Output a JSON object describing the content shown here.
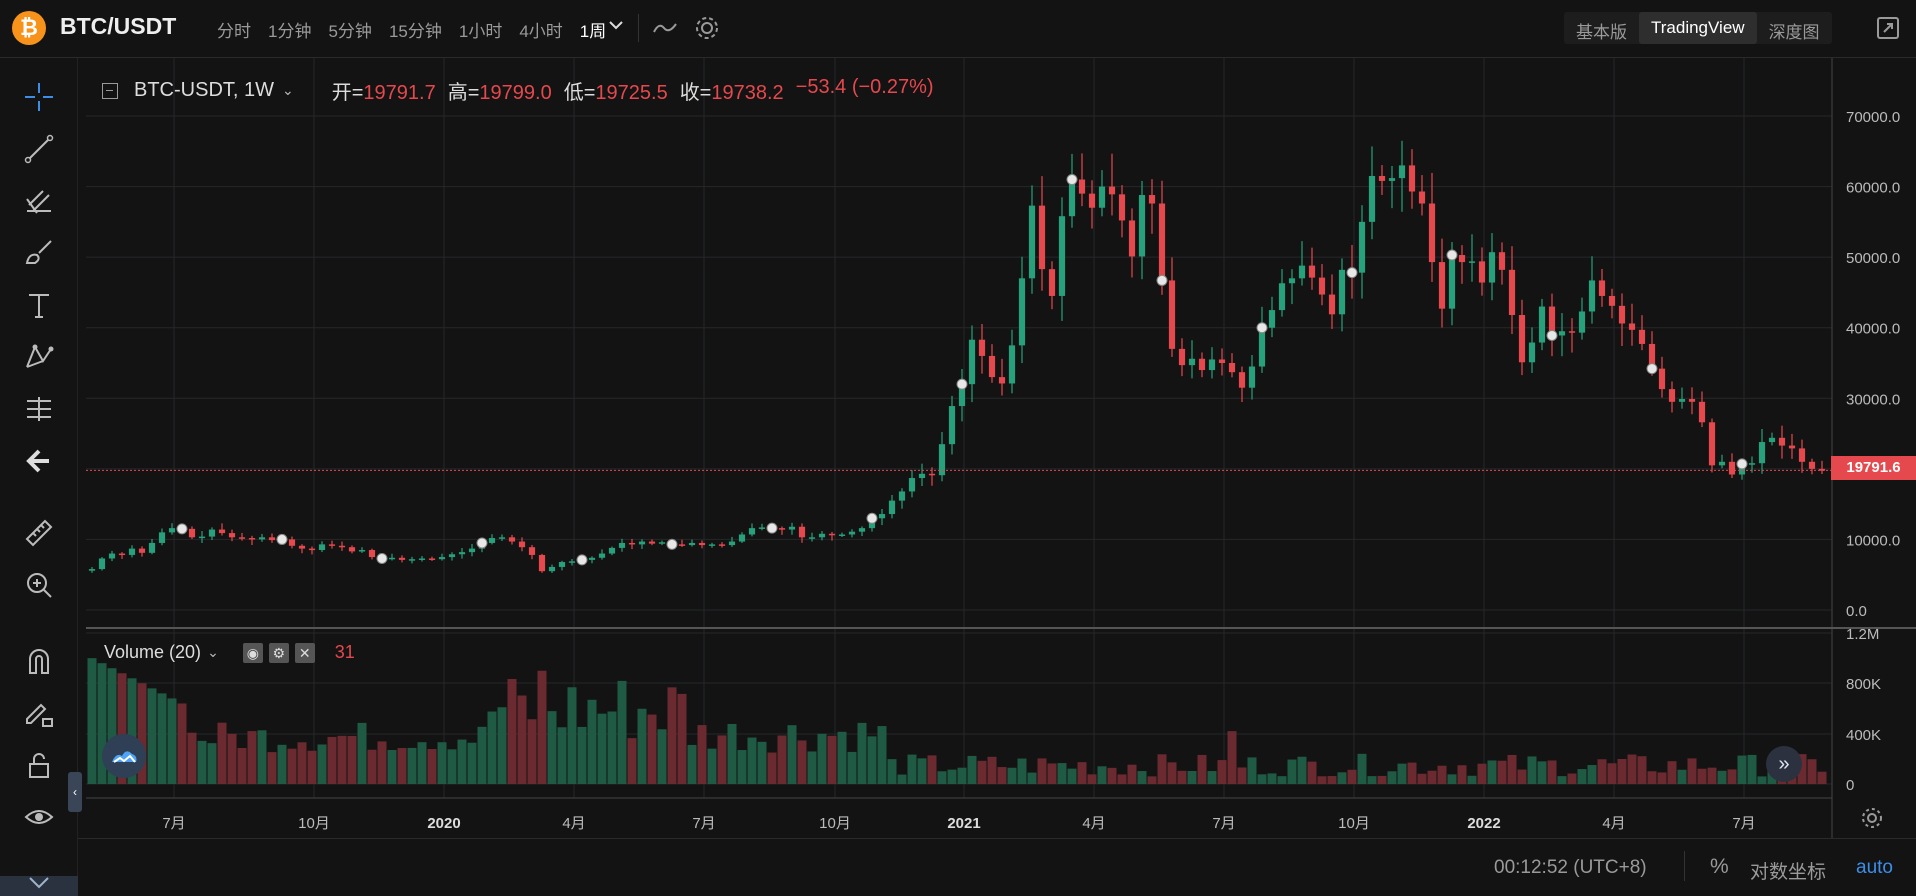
{
  "header": {
    "logo_glyph": "₿",
    "pair": "BTC/USDT",
    "intervals": [
      "分时",
      "1分钟",
      "5分钟",
      "15分钟",
      "1小时",
      "4小时",
      "1周"
    ],
    "active_interval": "1周",
    "views": [
      "基本版",
      "TradingView",
      "深度图"
    ],
    "active_view": "TradingView"
  },
  "legend": {
    "symbol": "BTC-USDT, 1W",
    "open_label": "开=",
    "open": "19791.7",
    "high_label": "高=",
    "high": "19799.0",
    "low_label": "低=",
    "low": "19725.5",
    "close_label": "收=",
    "close": "19738.2",
    "change": "−53.4 (−0.27%)"
  },
  "volume_legend": {
    "label": "Volume (20)",
    "value": "31"
  },
  "price_tag": "19791.6",
  "bottom": {
    "time": "00:12:52 (UTC+8)",
    "percent": "%",
    "log": "对数坐标",
    "auto": "auto"
  },
  "colors": {
    "up": "#26a17b",
    "down": "#e5484d",
    "background": "#131313",
    "grid": "#26272b",
    "accent": "#3c8ee8"
  },
  "icons": {
    "toolbar": [
      "crosshair-icon",
      "trend-line-icon",
      "pitchfork-icon",
      "brush-icon",
      "text-icon",
      "pattern-icon",
      "measure-range-icon",
      "back-arrow-icon",
      "ruler-icon",
      "zoom-in-icon",
      "magnet-icon",
      "lock-pencil-icon",
      "unlock-icon",
      "eye-icon"
    ]
  },
  "chart_data": [
    {
      "type": "candlestick",
      "title": "BTC-USDT, 1W",
      "xlabel": "",
      "ylabel": "",
      "ylim": [
        0,
        70000
      ],
      "x_ticks": [
        "7月",
        "10月",
        "2020",
        "4月",
        "7月",
        "10月",
        "2021",
        "4月",
        "7月",
        "10月",
        "2022",
        "4月",
        "7月"
      ],
      "y_ticks": [
        "70000.0",
        "60000.0",
        "50000.0",
        "40000.0",
        "30000.0",
        "20000.0",
        "10000.0",
        "0.0"
      ],
      "current_price": 19791.6,
      "closes": [
        5800,
        7300,
        8000,
        7800,
        8700,
        8100,
        9500,
        11000,
        11600,
        11500,
        10300,
        10400,
        11400,
        10900,
        10300,
        10200,
        10000,
        10300,
        9900,
        10000,
        9100,
        8700,
        8500,
        9300,
        9100,
        8900,
        8300,
        8500,
        7500,
        7300,
        7400,
        7100,
        7200,
        7300,
        7200,
        7500,
        7900,
        8200,
        8700,
        9500,
        10200,
        10300,
        9700,
        8900,
        7800,
        5500,
        6100,
        6800,
        6900,
        7100,
        7400,
        8000,
        8800,
        9500,
        9300,
        9700,
        9400,
        9600,
        9300,
        9200,
        9500,
        9200,
        9300,
        9200,
        9700,
        10700,
        11600,
        11700,
        11600,
        11400,
        11800,
        10300,
        10300,
        10800,
        10600,
        10700,
        11100,
        11600,
        13000,
        13600,
        15500,
        16800,
        18700,
        19300,
        19100,
        23500,
        28900,
        32000,
        38300,
        36000,
        33000,
        32100,
        37500,
        47000,
        57300,
        48300,
        44500,
        55800,
        61000,
        59000,
        57000,
        60000,
        58900,
        55200,
        50100,
        58800,
        57600,
        46700,
        37000,
        34700,
        35600,
        34000,
        35500,
        35000,
        33700,
        31500,
        34500,
        40000,
        42500,
        46300,
        47000,
        48800,
        47100,
        44700,
        41900,
        48200,
        47800,
        55000,
        61500,
        60800,
        61200,
        63000,
        59300,
        57600,
        49300,
        42700,
        50300,
        49300,
        49400,
        46400,
        50700,
        48200,
        41800,
        35100,
        37900,
        43000,
        38900,
        39500,
        39300,
        42300,
        46700,
        44500,
        43100,
        40600,
        39700,
        37700,
        34200,
        31300,
        29500,
        29900,
        29500,
        26600,
        20500,
        21000,
        19200,
        20700,
        20800,
        23800,
        24400,
        23300,
        22900,
        21000,
        20000,
        19738
      ],
      "volume_series": "weekly volume bars, 0 to 1.2M, colored by candle direction",
      "volume_ticks": [
        "1.2M",
        "800K",
        "400K",
        "0"
      ]
    }
  ]
}
